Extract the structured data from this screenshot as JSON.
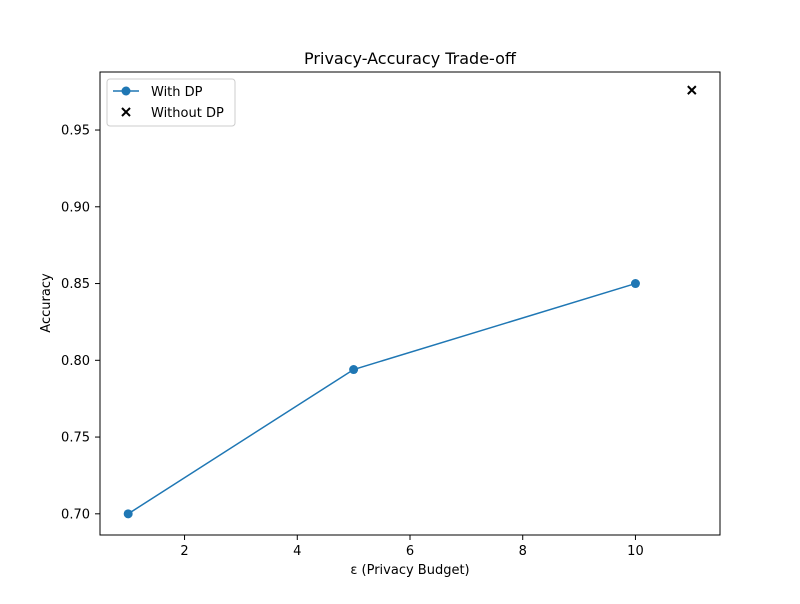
{
  "chart_data": {
    "type": "line",
    "title": "Privacy-Accuracy Trade-off",
    "xlabel": "ε (Privacy Budget)",
    "ylabel": "Accuracy",
    "xlim": [
      0.5,
      11.5
    ],
    "ylim": [
      0.6862,
      0.9878
    ],
    "xticks": [
      2,
      4,
      6,
      8,
      10
    ],
    "yticks": [
      0.7,
      0.75,
      0.8,
      0.85,
      0.9,
      0.95
    ],
    "xtick_labels": [
      "2",
      "4",
      "6",
      "8",
      "10"
    ],
    "ytick_labels": [
      "0.70",
      "0.75",
      "0.80",
      "0.85",
      "0.90",
      "0.95"
    ],
    "grid": false,
    "legend_position": "upper-left",
    "series": [
      {
        "name": "With DP",
        "kind": "line-marker",
        "color": "#1f77b4",
        "marker": "circle",
        "x": [
          1,
          5,
          10
        ],
        "y": [
          0.7,
          0.794,
          0.85
        ]
      },
      {
        "name": "Without DP",
        "kind": "scatter",
        "color": "#000000",
        "marker": "x",
        "x": [
          11
        ],
        "y": [
          0.976
        ]
      }
    ]
  }
}
